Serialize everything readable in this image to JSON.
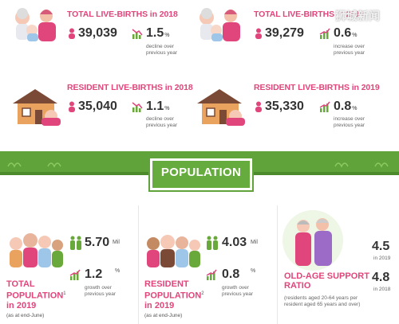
{
  "watermark": "狮城新闻",
  "births": [
    {
      "title": "TOTAL LIVE-BIRTHS in 2018",
      "count": "39,039",
      "rate": "1.5",
      "unit": "%",
      "note": "decline over previous year"
    },
    {
      "title": "TOTAL LIVE-BIRTHS in 2019",
      "count": "39,279",
      "rate": "0.6",
      "unit": "%",
      "note": "increase over previous year"
    },
    {
      "title": "RESIDENT LIVE-BIRTHS in 2018",
      "count": "35,040",
      "rate": "1.1",
      "unit": "%",
      "note": "decline over previous year"
    },
    {
      "title": "RESIDENT LIVE-BIRTHS in 2019",
      "count": "35,330",
      "rate": "0.8",
      "unit": "%",
      "note": "increase over previous year"
    }
  ],
  "banner": {
    "label": "POPULATION"
  },
  "population": {
    "total": {
      "title_1": "TOTAL",
      "title_2": "POPULATION",
      "sup": "1",
      "title_3": "in 2019",
      "sub": "(as at end-June)",
      "count": "5.70",
      "count_unit": "Mil",
      "growth": "1.2",
      "growth_unit": "%",
      "growth_note": "growth over previous year"
    },
    "resident": {
      "title_1": "RESIDENT",
      "title_2": "POPULATION",
      "sup": "2",
      "title_3": "in 2019",
      "sub": "(as at end-June)",
      "count": "4.03",
      "count_unit": "Mil",
      "growth": "0.8",
      "growth_unit": "%",
      "growth_note": "growth over previous year"
    },
    "support": {
      "title_1": "OLD-AGE SUPPORT",
      "title_2": "RATIO",
      "note": "(residents aged 20-64 years per resident aged 65 years and over)",
      "v1": "4.5",
      "y1": "in 2019",
      "v2": "4.8",
      "y2": "in 2018"
    }
  },
  "colors": {
    "pink": "#e0457b",
    "green": "#69a83a",
    "banner_green": "#5fa33a"
  }
}
